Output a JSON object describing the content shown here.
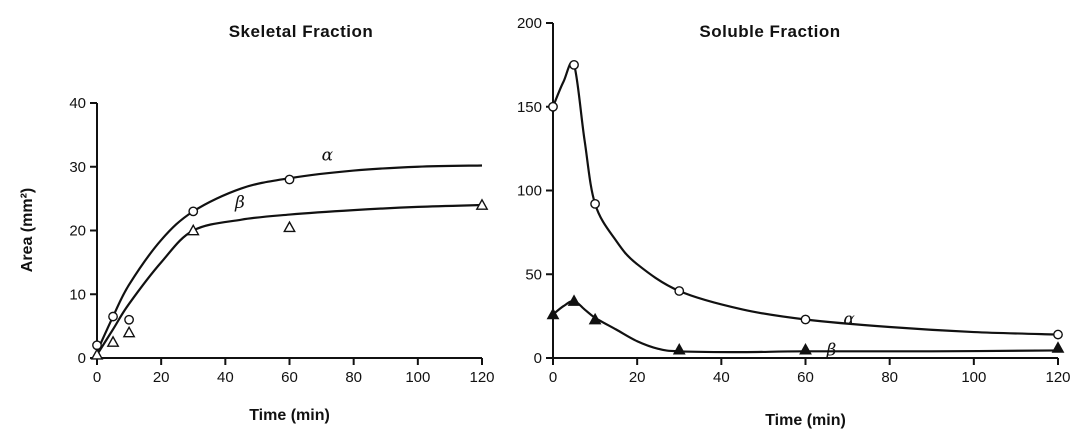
{
  "chart_data": [
    {
      "type": "line",
      "title": "Skeletal Fraction",
      "xlabel": "Time (min)",
      "ylabel": "Area (mm²)",
      "xlim": [
        0,
        120
      ],
      "ylim": [
        0,
        40
      ],
      "xticks": [
        0,
        20,
        40,
        60,
        80,
        100,
        120
      ],
      "yticks": [
        0,
        10,
        20,
        30,
        40
      ],
      "grid": false,
      "series": [
        {
          "name": "α",
          "marker": "open-circle",
          "points": [
            [
              0,
              2
            ],
            [
              5,
              6.5
            ],
            [
              10,
              6
            ],
            [
              30,
              23
            ],
            [
              60,
              28
            ]
          ],
          "curve": [
            [
              0,
              1
            ],
            [
              5,
              6.5
            ],
            [
              10,
              11.5
            ],
            [
              20,
              18.5
            ],
            [
              30,
              23
            ],
            [
              45,
              26.6
            ],
            [
              60,
              28.2
            ],
            [
              80,
              29.4
            ],
            [
              100,
              30
            ],
            [
              120,
              30.2
            ]
          ]
        },
        {
          "name": "β",
          "marker": "open-triangle",
          "points": [
            [
              0,
              0.5
            ],
            [
              5,
              2.5
            ],
            [
              10,
              4
            ],
            [
              30,
              20
            ],
            [
              60,
              20.5
            ],
            [
              120,
              24
            ]
          ],
          "curve": [
            [
              0,
              0.5
            ],
            [
              5,
              4.5
            ],
            [
              10,
              8.5
            ],
            [
              20,
              15
            ],
            [
              30,
              20
            ],
            [
              45,
              21.7
            ],
            [
              60,
              22.5
            ],
            [
              80,
              23.2
            ],
            [
              100,
              23.7
            ],
            [
              120,
              24
            ]
          ]
        }
      ]
    },
    {
      "type": "line",
      "title": "Soluble Fraction",
      "xlabel": "Time (min)",
      "ylabel": "",
      "xlim": [
        0,
        120
      ],
      "ylim": [
        0,
        200
      ],
      "xticks": [
        0,
        20,
        40,
        60,
        80,
        100,
        120
      ],
      "yticks": [
        0,
        50,
        100,
        150,
        200
      ],
      "grid": false,
      "series": [
        {
          "name": "α",
          "marker": "open-circle",
          "points": [
            [
              0,
              150
            ],
            [
              5,
              175
            ],
            [
              10,
              92
            ],
            [
              30,
              40
            ],
            [
              60,
              23
            ],
            [
              120,
              14
            ]
          ],
          "curve": [
            [
              0,
              150
            ],
            [
              2.5,
              165
            ],
            [
              5,
              175
            ],
            [
              7.5,
              130
            ],
            [
              10,
              92
            ],
            [
              15,
              70
            ],
            [
              20,
              56
            ],
            [
              30,
              40
            ],
            [
              45,
              29
            ],
            [
              60,
              23
            ],
            [
              80,
              18.5
            ],
            [
              100,
              15.5
            ],
            [
              120,
              14
            ]
          ]
        },
        {
          "name": "β",
          "marker": "filled-triangle",
          "points": [
            [
              0,
              26
            ],
            [
              5,
              34
            ],
            [
              10,
              23
            ],
            [
              30,
              5
            ],
            [
              60,
              5
            ],
            [
              120,
              6
            ]
          ],
          "curve": [
            [
              0,
              26
            ],
            [
              2.5,
              31
            ],
            [
              5,
              34
            ],
            [
              7.5,
              29
            ],
            [
              10,
              24
            ],
            [
              15,
              17
            ],
            [
              20,
              10
            ],
            [
              25,
              5.5
            ],
            [
              30,
              4
            ],
            [
              45,
              3.5
            ],
            [
              60,
              4
            ],
            [
              90,
              4
            ],
            [
              120,
              4.5
            ]
          ]
        }
      ]
    }
  ]
}
